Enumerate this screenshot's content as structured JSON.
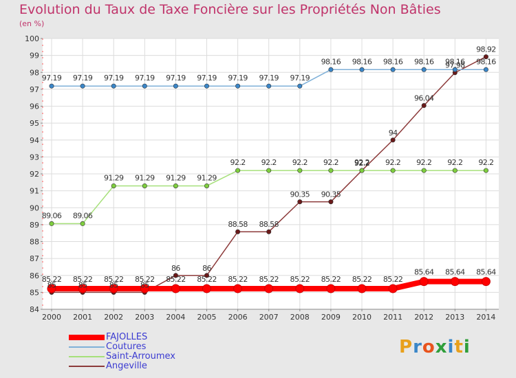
{
  "header": {
    "title": "Evolution du Taux de Taxe Foncière sur les Propriétés Non Bâties",
    "unit": "(en %)"
  },
  "brand": {
    "text": "Proxiti"
  },
  "chart_data": {
    "type": "line",
    "title": "Evolution du Taux de Taxe Foncière sur les Propriétés Non Bâties",
    "ylabel": "(en %)",
    "xlabel": "",
    "ylim": [
      84,
      100
    ],
    "yticks": [
      84,
      85,
      86,
      87,
      88,
      89,
      90,
      91,
      92,
      93,
      94,
      95,
      96,
      97,
      98,
      99,
      100
    ],
    "categories": [
      "2000",
      "2001",
      "2002",
      "2003",
      "2004",
      "2005",
      "2006",
      "2007",
      "2008",
      "2009",
      "2010",
      "2011",
      "2012",
      "2013",
      "2014"
    ],
    "series": [
      {
        "name": "Angeville",
        "color": "#6b1a1a",
        "line_color": "#8c3a3a",
        "values": [
          85,
          85,
          85,
          85,
          86,
          86,
          88.58,
          88.58,
          90.35,
          90.35,
          92.2,
          94,
          96.04,
          97.98,
          98.92
        ],
        "labels": [
          "85",
          "85",
          "85",
          "85",
          "86",
          "86",
          "88.58",
          "88.58",
          "90.35",
          "90.35",
          "92.2",
          "94",
          "96.04",
          "97.98",
          "98.92"
        ]
      },
      {
        "name": "Saint-Arroumex",
        "color": "#7fcf3f",
        "line_color": "#a6e07a",
        "values": [
          89.06,
          89.06,
          91.29,
          91.29,
          91.29,
          91.29,
          92.2,
          92.2,
          92.2,
          92.2,
          92.2,
          92.2,
          92.2,
          92.2,
          92.2
        ],
        "labels": [
          "89.06",
          "89.06",
          "91.29",
          "91.29",
          "91.29",
          "91.29",
          "92.2",
          "92.2",
          "92.2",
          "92.2",
          "92.2",
          "92.2",
          "92.2",
          "92.2",
          "92.2"
        ]
      },
      {
        "name": "Coutures",
        "color": "#3a86c8",
        "line_color": "#7fb0d8",
        "values": [
          97.19,
          97.19,
          97.19,
          97.19,
          97.19,
          97.19,
          97.19,
          97.19,
          97.19,
          98.16,
          98.16,
          98.16,
          98.16,
          98.16,
          98.16
        ],
        "labels": [
          "97.19",
          "97.19",
          "97.19",
          "97.19",
          "97.19",
          "97.19",
          "97.19",
          "97.19",
          "97.19",
          "98.16",
          "98.16",
          "98.16",
          "98.16",
          "98.16",
          "98.16"
        ]
      },
      {
        "name": "FAJOLLES",
        "color": "#ff0000",
        "line_color": "#ff0000",
        "values": [
          85.22,
          85.22,
          85.22,
          85.22,
          85.22,
          85.22,
          85.22,
          85.22,
          85.22,
          85.22,
          85.22,
          85.22,
          85.64,
          85.64,
          85.64
        ],
        "labels": [
          "85.22",
          "85.22",
          "85.22",
          "85.22",
          "85.22",
          "85.22",
          "85.22",
          "85.22",
          "85.22",
          "85.22",
          "85.22",
          "85.22",
          "85.64",
          "85.64",
          "85.64"
        ]
      }
    ],
    "legend": [
      "FAJOLLES",
      "Coutures",
      "Saint-Arroumex",
      "Angeville"
    ],
    "legend_position": "bottom-left"
  }
}
